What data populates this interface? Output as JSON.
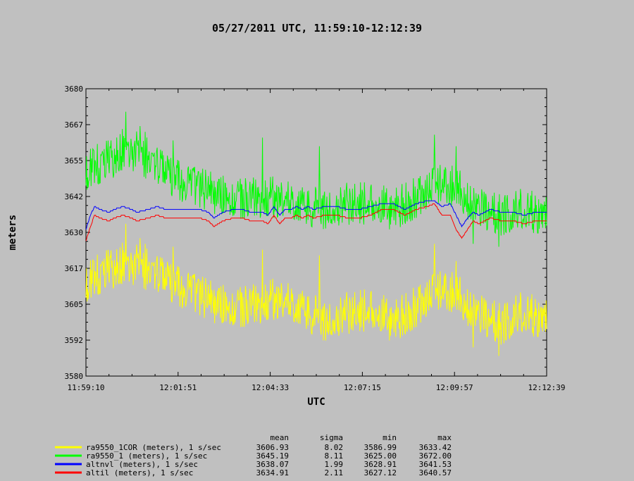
{
  "title": "05/27/2011  UTC, 11:59:10-12:12:39",
  "chart_data": {
    "type": "line",
    "xlabel": "UTC",
    "ylabel": "meters",
    "x_ticks": [
      "11:59:10",
      "12:01:51",
      "12:04:33",
      "12:07:15",
      "12:09:57",
      "12:12:39"
    ],
    "y_ticks": [
      3680,
      3667,
      3655,
      3642,
      3630,
      3617,
      3605,
      3592,
      3580
    ],
    "ylim": [
      3580,
      3680
    ],
    "xlim_seconds": [
      0,
      809
    ],
    "grid": false,
    "legend_position": "bottom",
    "stats_headers": [
      "mean",
      "sigma",
      "min",
      "max"
    ],
    "series": [
      {
        "name": "ra9550_1COR (meters), 1 s/sec",
        "color": "#ffff00",
        "mean": "3606.93",
        "sigma": "8.02",
        "min": "3586.99",
        "max": "3633.42",
        "noise": 7.5,
        "anchors": [
          [
            0,
            3613
          ],
          [
            40,
            3617
          ],
          [
            70,
            3620
          ],
          [
            100,
            3618
          ],
          [
            140,
            3613
          ],
          [
            180,
            3610
          ],
          [
            220,
            3606
          ],
          [
            260,
            3603
          ],
          [
            300,
            3605
          ],
          [
            340,
            3607
          ],
          [
            380,
            3604
          ],
          [
            420,
            3599
          ],
          [
            460,
            3602
          ],
          [
            500,
            3603
          ],
          [
            540,
            3599
          ],
          [
            580,
            3604
          ],
          [
            610,
            3609
          ],
          [
            640,
            3610
          ],
          [
            670,
            3605
          ],
          [
            700,
            3601
          ],
          [
            730,
            3598
          ],
          [
            760,
            3602
          ],
          [
            809,
            3600
          ]
        ],
        "spikes": [
          [
            70,
            3633
          ],
          [
            95,
            3628
          ],
          [
            104,
            3626
          ],
          [
            153,
            3625
          ],
          [
            310,
            3624
          ],
          [
            410,
            3622
          ],
          [
            612,
            3626
          ],
          [
            650,
            3620
          ],
          [
            680,
            3590
          ],
          [
            725,
            3587
          ]
        ]
      },
      {
        "name": "ra9550_1 (meters), 1 s/sec",
        "color": "#00ff00",
        "mean": "3645.19",
        "sigma": "8.11",
        "min": "3625.00",
        "max": "3672.00",
        "noise": 7.5,
        "anchors": [
          [
            0,
            3652
          ],
          [
            40,
            3655
          ],
          [
            70,
            3660
          ],
          [
            100,
            3657
          ],
          [
            140,
            3650
          ],
          [
            180,
            3647
          ],
          [
            220,
            3644
          ],
          [
            260,
            3641
          ],
          [
            300,
            3642
          ],
          [
            340,
            3642
          ],
          [
            380,
            3640
          ],
          [
            420,
            3638
          ],
          [
            460,
            3640
          ],
          [
            500,
            3640
          ],
          [
            540,
            3638
          ],
          [
            580,
            3642
          ],
          [
            610,
            3646
          ],
          [
            640,
            3647
          ],
          [
            670,
            3642
          ],
          [
            700,
            3638
          ],
          [
            730,
            3636
          ],
          [
            760,
            3638
          ],
          [
            809,
            3636
          ]
        ],
        "spikes": [
          [
            70,
            3672
          ],
          [
            95,
            3667
          ],
          [
            104,
            3665
          ],
          [
            153,
            3662
          ],
          [
            310,
            3663
          ],
          [
            410,
            3660
          ],
          [
            612,
            3664
          ],
          [
            650,
            3660
          ],
          [
            680,
            3626
          ],
          [
            725,
            3625
          ]
        ]
      },
      {
        "name": "altnvl (meters), 1 s/sec",
        "color": "#0000ff",
        "mean": "3638.07",
        "sigma": "1.99",
        "min": "3628.91",
        "max": "3641.53",
        "noise": 0,
        "anchors": [
          [
            0,
            3631
          ],
          [
            8,
            3636
          ],
          [
            15,
            3639
          ],
          [
            25,
            3638
          ],
          [
            40,
            3637
          ],
          [
            50,
            3638
          ],
          [
            65,
            3639
          ],
          [
            80,
            3638
          ],
          [
            90,
            3637
          ],
          [
            110,
            3638
          ],
          [
            125,
            3639
          ],
          [
            140,
            3638
          ],
          [
            160,
            3638
          ],
          [
            180,
            3638
          ],
          [
            200,
            3638
          ],
          [
            215,
            3637
          ],
          [
            225,
            3635
          ],
          [
            240,
            3637
          ],
          [
            260,
            3638
          ],
          [
            275,
            3638
          ],
          [
            290,
            3637
          ],
          [
            300,
            3637
          ],
          [
            310,
            3637
          ],
          [
            320,
            3636
          ],
          [
            330,
            3639
          ],
          [
            340,
            3636
          ],
          [
            350,
            3638
          ],
          [
            360,
            3638
          ],
          [
            370,
            3639
          ],
          [
            380,
            3638
          ],
          [
            390,
            3639
          ],
          [
            400,
            3638
          ],
          [
            420,
            3639
          ],
          [
            440,
            3639
          ],
          [
            460,
            3638
          ],
          [
            480,
            3638
          ],
          [
            500,
            3639
          ],
          [
            520,
            3640
          ],
          [
            540,
            3640
          ],
          [
            560,
            3638
          ],
          [
            580,
            3640
          ],
          [
            600,
            3641
          ],
          [
            612,
            3641
          ],
          [
            625,
            3639
          ],
          [
            640,
            3640
          ],
          [
            650,
            3636
          ],
          [
            660,
            3632
          ],
          [
            670,
            3635
          ],
          [
            680,
            3637
          ],
          [
            690,
            3636
          ],
          [
            710,
            3638
          ],
          [
            730,
            3637
          ],
          [
            750,
            3637
          ],
          [
            770,
            3636
          ],
          [
            790,
            3637
          ],
          [
            809,
            3637
          ]
        ]
      },
      {
        "name": "altil (meters), 1 s/sec",
        "color": "#ff0000",
        "mean": "3634.91",
        "sigma": "2.11",
        "min": "3627.12",
        "max": "3640.57",
        "noise": 0,
        "anchors": [
          [
            0,
            3627
          ],
          [
            8,
            3632
          ],
          [
            15,
            3636
          ],
          [
            25,
            3635
          ],
          [
            40,
            3634
          ],
          [
            50,
            3635
          ],
          [
            65,
            3636
          ],
          [
            80,
            3635
          ],
          [
            90,
            3634
          ],
          [
            110,
            3635
          ],
          [
            125,
            3636
          ],
          [
            140,
            3635
          ],
          [
            160,
            3635
          ],
          [
            180,
            3635
          ],
          [
            200,
            3635
          ],
          [
            215,
            3634
          ],
          [
            225,
            3632
          ],
          [
            240,
            3634
          ],
          [
            260,
            3635
          ],
          [
            275,
            3635
          ],
          [
            290,
            3634
          ],
          [
            300,
            3634
          ],
          [
            310,
            3634
          ],
          [
            320,
            3633
          ],
          [
            330,
            3636
          ],
          [
            340,
            3633
          ],
          [
            350,
            3635
          ],
          [
            360,
            3635
          ],
          [
            370,
            3636
          ],
          [
            380,
            3635
          ],
          [
            390,
            3636
          ],
          [
            400,
            3635
          ],
          [
            420,
            3636
          ],
          [
            440,
            3636
          ],
          [
            460,
            3635
          ],
          [
            480,
            3635
          ],
          [
            500,
            3636
          ],
          [
            520,
            3638
          ],
          [
            540,
            3638
          ],
          [
            560,
            3636
          ],
          [
            580,
            3638
          ],
          [
            600,
            3639
          ],
          [
            612,
            3640
          ],
          [
            625,
            3636
          ],
          [
            640,
            3636
          ],
          [
            650,
            3631
          ],
          [
            660,
            3628
          ],
          [
            670,
            3631
          ],
          [
            680,
            3634
          ],
          [
            690,
            3633
          ],
          [
            710,
            3635
          ],
          [
            730,
            3634
          ],
          [
            750,
            3634
          ],
          [
            770,
            3633
          ],
          [
            790,
            3634
          ],
          [
            809,
            3634
          ]
        ]
      }
    ]
  }
}
